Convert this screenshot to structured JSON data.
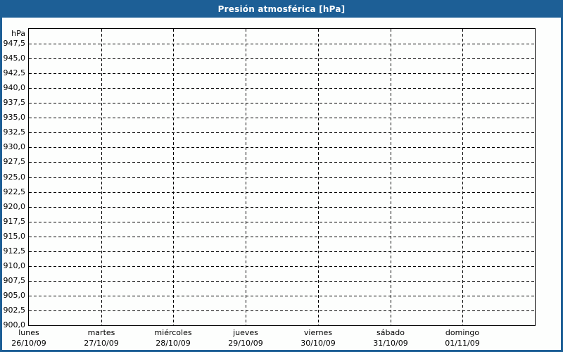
{
  "window": {
    "title": "Presión atmosférica [hPa]"
  },
  "colors": {
    "frame": "#1d5f96",
    "title_text": "#ffffff",
    "chart_bg": "#fdfefd",
    "grid": "#000000",
    "label_text": "#000000"
  },
  "chart_data": {
    "type": "line",
    "title": "Presión atmosférica [hPa]",
    "y_unit": "hPa",
    "ylim": [
      900,
      950
    ],
    "ytick_step": 2.5,
    "ytick_labels": [
      "947,5",
      "945,0",
      "942,5",
      "940,0",
      "937,5",
      "935,0",
      "932,5",
      "930,0",
      "927,5",
      "925,0",
      "922,5",
      "920,0",
      "917,5",
      "915,0",
      "912,5",
      "910,0",
      "907,5",
      "905,0",
      "902,5",
      "900,0"
    ],
    "x_categories": [
      {
        "day": "lunes",
        "date": "26/10/09"
      },
      {
        "day": "martes",
        "date": "27/10/09"
      },
      {
        "day": "miércoles",
        "date": "28/10/09"
      },
      {
        "day": "jueves",
        "date": "29/10/09"
      },
      {
        "day": "viernes",
        "date": "30/10/09"
      },
      {
        "day": "sábado",
        "date": "31/10/09"
      },
      {
        "day": "domingo",
        "date": "01/11/09"
      }
    ],
    "series": [],
    "grid": "dashed",
    "legend": "none"
  }
}
